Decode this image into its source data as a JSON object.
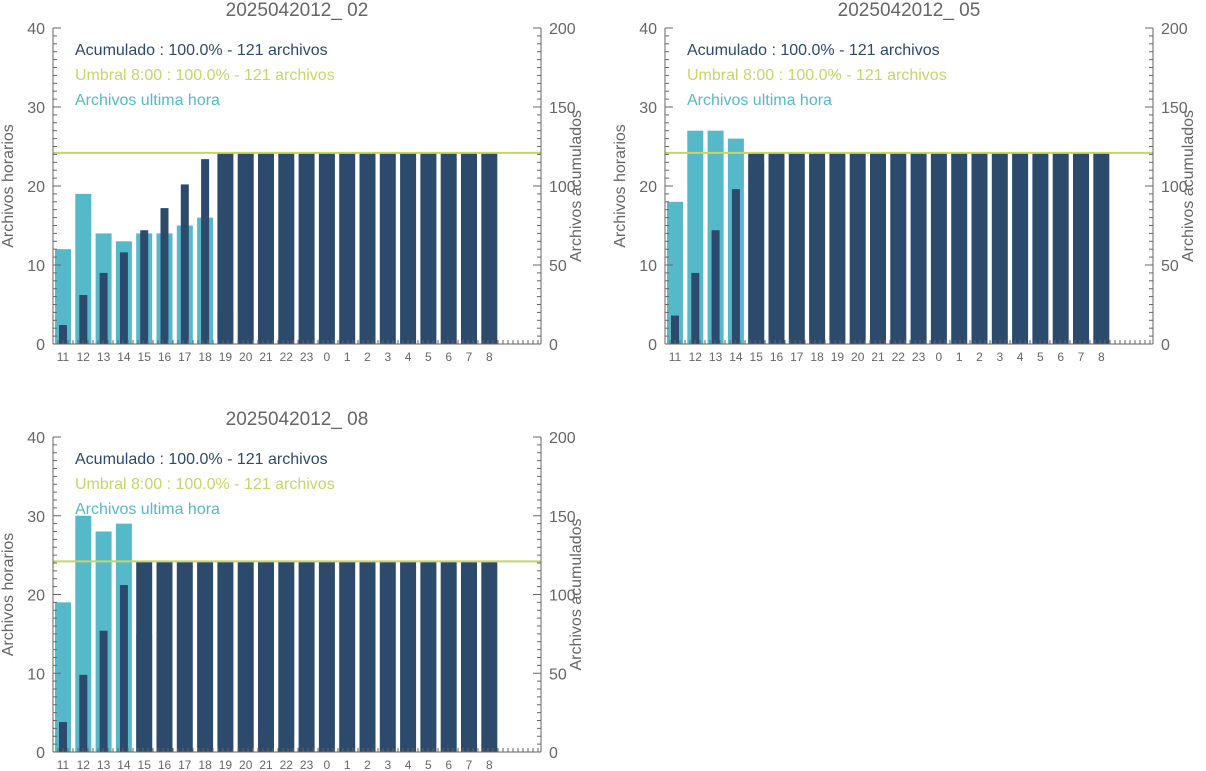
{
  "colors": {
    "acumulado": "#2c4a6b",
    "umbral": "#c8d46a",
    "horarios": "#55b9c9",
    "axis": "#666666",
    "text": "#555555"
  },
  "chart_data": [
    {
      "type": "bar",
      "title": "2025042012_ 02",
      "ylabel_left": "Archivos horarios",
      "ylabel_right": "Archivos acumulados",
      "ylim_left": [
        0,
        40
      ],
      "ylim_right": [
        0,
        200
      ],
      "yticks_left": [
        "0",
        "10",
        "20",
        "30",
        "40"
      ],
      "yticks_right": [
        "0",
        "50",
        "100",
        "150",
        "200"
      ],
      "categories": [
        "11",
        "12",
        "13",
        "14",
        "15",
        "16",
        "17",
        "18",
        "19",
        "20",
        "21",
        "22",
        "23",
        "0",
        "1",
        "2",
        "3",
        "4",
        "5",
        "6",
        "7",
        "8"
      ],
      "legend": [
        "Acumulado : 100.0% - 121 archivos",
        "Umbral 8:00 : 100.0% - 121 archivos",
        "Archivos ultima hora"
      ],
      "umbral_value": 121,
      "series": [
        {
          "name": "Archivos ultima hora",
          "axis": "left",
          "values": [
            12,
            19,
            14,
            13,
            14,
            14,
            15,
            16,
            4,
            0,
            0,
            0,
            0,
            0,
            0,
            0,
            0,
            0,
            0,
            0,
            0,
            0
          ]
        },
        {
          "name": "Acumulado",
          "axis": "right",
          "values": [
            12,
            31,
            45,
            58,
            72,
            86,
            101,
            117,
            121,
            121,
            121,
            121,
            121,
            121,
            121,
            121,
            121,
            121,
            121,
            121,
            121,
            121
          ]
        }
      ]
    },
    {
      "type": "bar",
      "title": "2025042012_ 05",
      "ylabel_left": "Archivos horarios",
      "ylabel_right": "Archivos acumulados",
      "ylim_left": [
        0,
        40
      ],
      "ylim_right": [
        0,
        200
      ],
      "yticks_left": [
        "0",
        "10",
        "20",
        "30",
        "40"
      ],
      "yticks_right": [
        "0",
        "50",
        "100",
        "150",
        "200"
      ],
      "categories": [
        "11",
        "12",
        "13",
        "14",
        "15",
        "16",
        "17",
        "18",
        "19",
        "20",
        "21",
        "22",
        "23",
        "0",
        "1",
        "2",
        "3",
        "4",
        "5",
        "6",
        "7",
        "8"
      ],
      "legend": [
        "Acumulado : 100.0% - 121 archivos",
        "Umbral 8:00 : 100.0% - 121 archivos",
        "Archivos ultima hora"
      ],
      "umbral_value": 121,
      "series": [
        {
          "name": "Archivos ultima hora",
          "axis": "left",
          "values": [
            18,
            27,
            27,
            26,
            23,
            0,
            0,
            0,
            0,
            0,
            0,
            0,
            0,
            0,
            0,
            0,
            0,
            0,
            0,
            0,
            0,
            0
          ]
        },
        {
          "name": "Acumulado",
          "axis": "right",
          "values": [
            18,
            45,
            72,
            98,
            121,
            121,
            121,
            121,
            121,
            121,
            121,
            121,
            121,
            121,
            121,
            121,
            121,
            121,
            121,
            121,
            121,
            121
          ]
        }
      ]
    },
    {
      "type": "bar",
      "title": "2025042012_ 08",
      "ylabel_left": "Archivos horarios",
      "ylabel_right": "Archivos acumulados",
      "ylim_left": [
        0,
        40
      ],
      "ylim_right": [
        0,
        200
      ],
      "yticks_left": [
        "0",
        "10",
        "20",
        "30",
        "40"
      ],
      "yticks_right": [
        "0",
        "50",
        "100",
        "150",
        "200"
      ],
      "categories": [
        "11",
        "12",
        "13",
        "14",
        "15",
        "16",
        "17",
        "18",
        "19",
        "20",
        "21",
        "22",
        "23",
        "0",
        "1",
        "2",
        "3",
        "4",
        "5",
        "6",
        "7",
        "8"
      ],
      "legend": [
        "Acumulado : 100.0% - 121 archivos",
        "Umbral 8:00 : 100.0% - 121 archivos",
        "Archivos ultima hora"
      ],
      "umbral_value": 121,
      "series": [
        {
          "name": "Archivos ultima hora",
          "axis": "left",
          "values": [
            19,
            30,
            28,
            29,
            15,
            0,
            0,
            0,
            0,
            0,
            0,
            0,
            0,
            0,
            0,
            0,
            0,
            0,
            0,
            0,
            0,
            0
          ]
        },
        {
          "name": "Acumulado",
          "axis": "right",
          "values": [
            19,
            49,
            77,
            106,
            121,
            121,
            121,
            121,
            121,
            121,
            121,
            121,
            121,
            121,
            121,
            121,
            121,
            121,
            121,
            121,
            121,
            121
          ]
        }
      ]
    }
  ]
}
